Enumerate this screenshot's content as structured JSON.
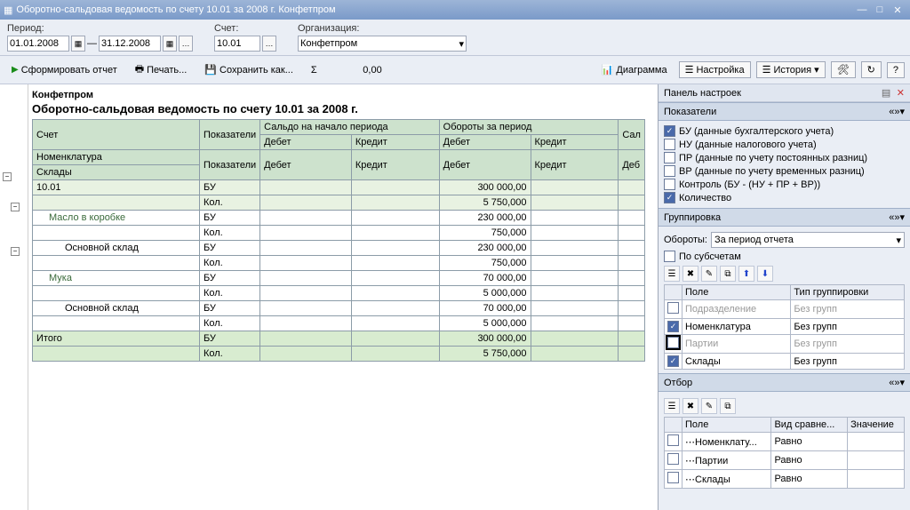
{
  "window": {
    "title": "Оборотно-сальдовая ведомость по счету 10.01 за 2008 г. Конфетпром"
  },
  "params": {
    "period_label": "Период:",
    "date_from": "01.01.2008",
    "date_to": "31.12.2008",
    "dash": "—",
    "account_label": "Счет:",
    "account": "10.01",
    "org_label": "Организация:",
    "org": "Конфетпром"
  },
  "toolbar": {
    "form": "Сформировать отчет",
    "print": "Печать...",
    "save": "Сохранить как...",
    "sigma": "Σ",
    "sigma_val": "0,00",
    "diagram": "Диаграмма",
    "settings": "Настройка",
    "history": "История"
  },
  "report": {
    "company": "Конфетпром",
    "title": "Оборотно-сальдовая ведомость по счету 10.01 за 2008 г.",
    "cols": {
      "account": "Счет",
      "indic": "Показатели",
      "open": "Сальдо на начало периода",
      "turn": "Обороты за период",
      "close": "Сал",
      "debit": "Дебет",
      "credit": "Кредит",
      "deb2": "Деб",
      "nomen": "Номенклатура",
      "wh": "Склады",
      "total": "Итого"
    },
    "labels": {
      "bu": "БУ",
      "qty": "Кол."
    },
    "rows": [
      {
        "name": "10.01",
        "cls": "sect",
        "bu": "300 000,00",
        "qty": "5 750,000"
      },
      {
        "name": "Масло в коробке",
        "cls": "indent1",
        "bu": "230 000,00",
        "qty": "750,000"
      },
      {
        "name": "Основной склад",
        "cls": "indent2",
        "bu": "230 000,00",
        "qty": "750,000"
      },
      {
        "name": "Мука",
        "cls": "indent1",
        "bu": "70 000,00",
        "qty": "5 000,000"
      },
      {
        "name": "Основной склад",
        "cls": "indent2",
        "bu": "70 000,00",
        "qty": "5 000,000"
      }
    ],
    "total": {
      "bu": "300 000,00",
      "qty": "5 750,000"
    }
  },
  "settings": {
    "panel_title": "Панель настроек",
    "indicators": {
      "title": "Показатели",
      "items": [
        {
          "label": "БУ (данные бухгалтерского учета)",
          "on": true
        },
        {
          "label": "НУ (данные налогового учета)",
          "on": false
        },
        {
          "label": "ПР (данные по учету постоянных разниц)",
          "on": false
        },
        {
          "label": "ВР (данные по учету временных разниц)",
          "on": false
        },
        {
          "label": "Контроль (БУ - (НУ + ПР + ВР))",
          "on": false
        },
        {
          "label": "Количество",
          "on": true
        }
      ]
    },
    "grouping": {
      "title": "Группировка",
      "turn_label": "Обороты:",
      "turn_val": "За период отчета",
      "by_sub": "По субсчетам",
      "cols": {
        "field": "Поле",
        "type": "Тип группировки"
      },
      "rows": [
        {
          "on": false,
          "field": "Подразделение",
          "type": "Без групп",
          "dim": true
        },
        {
          "on": true,
          "field": "Номенклатура",
          "type": "Без групп"
        },
        {
          "on": false,
          "field": "Партии",
          "type": "Без групп",
          "dim": true,
          "hl": true
        },
        {
          "on": true,
          "field": "Склады",
          "type": "Без групп"
        }
      ]
    },
    "filter": {
      "title": "Отбор",
      "cols": {
        "field": "Поле",
        "cmp": "Вид сравне...",
        "val": "Значение"
      },
      "rows": [
        {
          "field": "Номенклату...",
          "cmp": "Равно",
          "sel": true
        },
        {
          "field": "Партии",
          "cmp": "Равно"
        },
        {
          "field": "Склады",
          "cmp": "Равно"
        }
      ]
    }
  }
}
